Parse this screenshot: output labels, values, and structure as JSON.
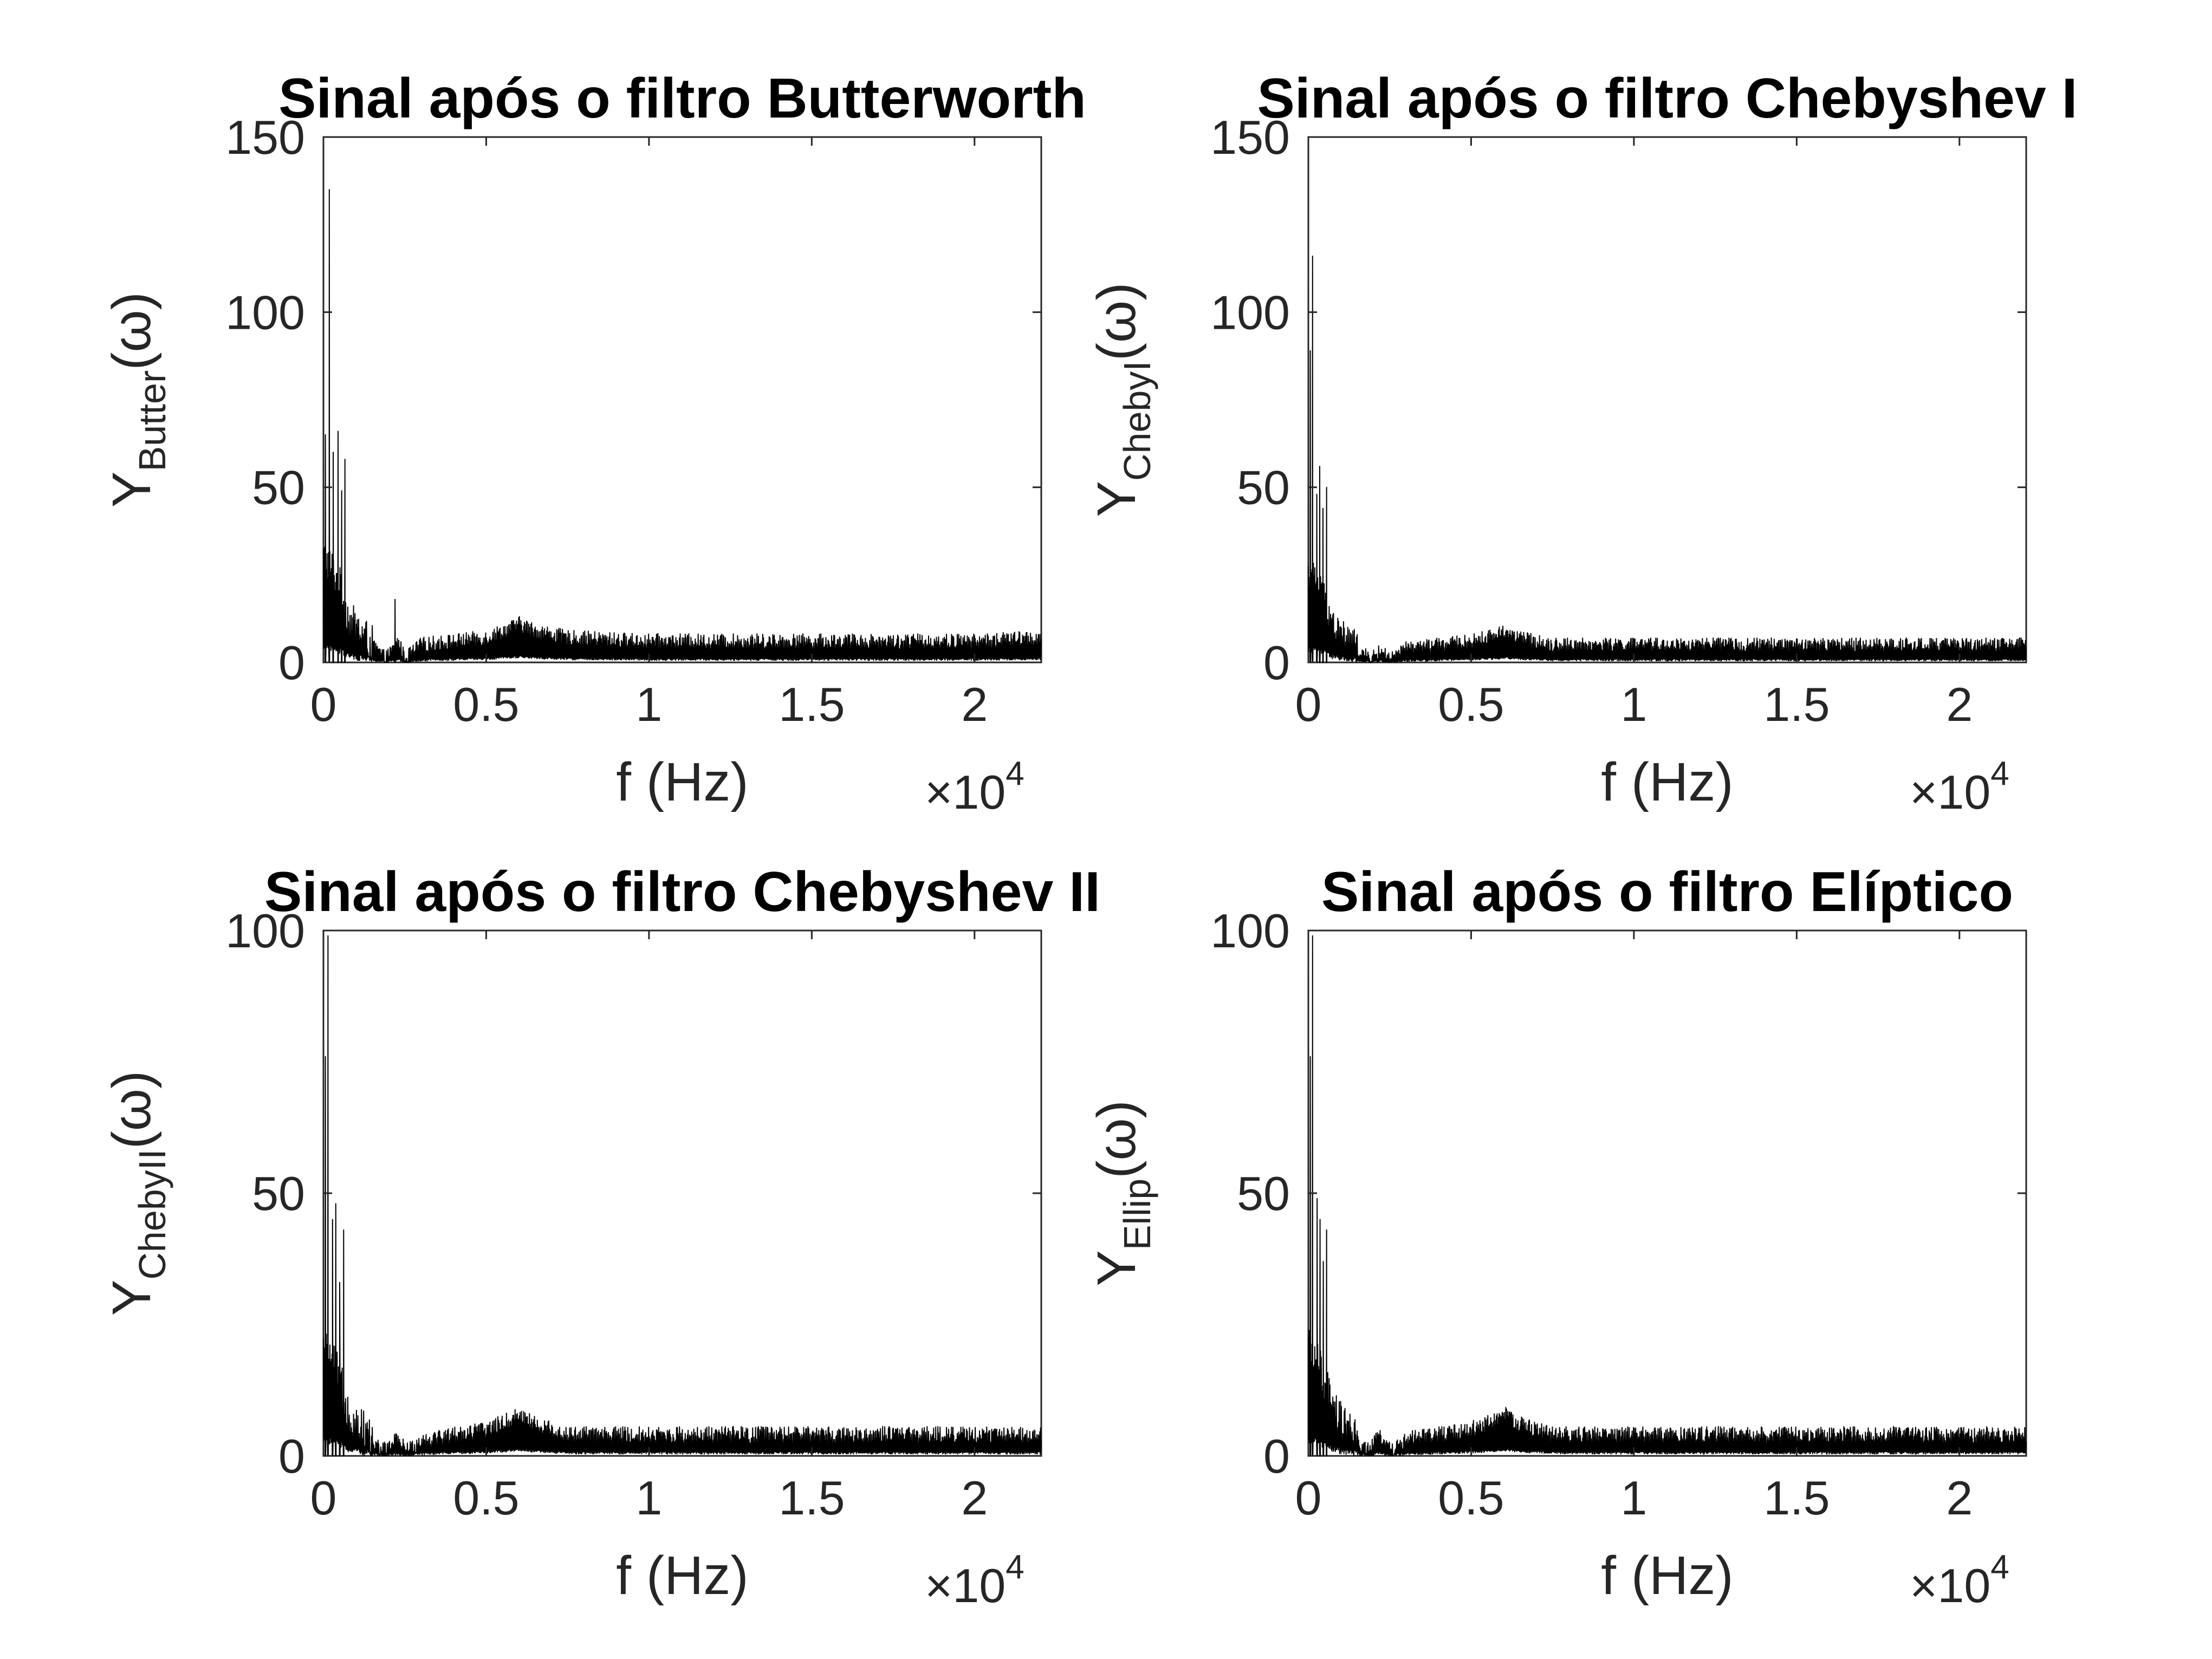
{
  "figure": {
    "axis_color": "#262626",
    "line_color": "#000000",
    "background": "#ffffff"
  },
  "chart_data": [
    {
      "type": "line",
      "title": "Sinal após o filtro Butterworth",
      "xlabel": "f (Hz)",
      "ylabel": {
        "base": "Y",
        "subscript": "Butter",
        "suffix": "(ω)"
      },
      "x_multiplier": {
        "base": "×10",
        "exponent": "4"
      },
      "xlim": [
        0,
        22050
      ],
      "ylim": [
        0,
        150
      ],
      "xticks": [
        0,
        5000,
        10000,
        15000,
        20000
      ],
      "xtick_labels": [
        "0",
        "0.5",
        "1",
        "1.5",
        "2"
      ],
      "yticks": [
        0,
        50,
        100,
        150
      ],
      "ytick_labels": [
        "0",
        "50",
        "100",
        "150"
      ],
      "grid": false,
      "series": [
        {
          "peaks": [
            [
              60,
              65
            ],
            [
              180,
              135
            ],
            [
              300,
              60
            ],
            [
              450,
              66
            ],
            [
              560,
              49
            ],
            [
              660,
              58
            ],
            [
              2200,
              18
            ]
          ],
          "envelope": [
            [
              0,
              30
            ],
            [
              200,
              28
            ],
            [
              500,
              22
            ],
            [
              800,
              12
            ],
            [
              1200,
              8
            ],
            [
              1600,
              4
            ],
            [
              1900,
              1
            ],
            [
              2100,
              3
            ],
            [
              2300,
              6
            ],
            [
              2500,
              1
            ],
            [
              3000,
              5
            ],
            [
              4000,
              6
            ],
            [
              5000,
              7
            ],
            [
              5800,
              10
            ],
            [
              6000,
              11
            ],
            [
              6500,
              9
            ],
            [
              7500,
              7
            ],
            [
              10000,
              6
            ],
            [
              15000,
              6
            ],
            [
              20000,
              6
            ],
            [
              22050,
              7
            ]
          ],
          "noise": 2.2
        }
      ]
    },
    {
      "type": "line",
      "title": "Sinal após o filtro Chebyshev I",
      "xlabel": "f (Hz)",
      "ylabel": {
        "base": "Y",
        "subscript": "ChebyI",
        "suffix": "(ω)"
      },
      "x_multiplier": {
        "base": "×10",
        "exponent": "4"
      },
      "xlim": [
        0,
        22050
      ],
      "ylim": [
        0,
        150
      ],
      "xticks": [
        0,
        5000,
        10000,
        15000,
        20000
      ],
      "xtick_labels": [
        "0",
        "0.5",
        "1",
        "1.5",
        "2"
      ],
      "yticks": [
        0,
        50,
        100,
        150
      ],
      "ytick_labels": [
        "0",
        "50",
        "100",
        "150"
      ],
      "grid": false,
      "series": [
        {
          "peaks": [
            [
              60,
              89
            ],
            [
              130,
              116
            ],
            [
              260,
              48
            ],
            [
              350,
              56
            ],
            [
              450,
              44
            ],
            [
              560,
              50
            ]
          ],
          "envelope": [
            [
              0,
              25
            ],
            [
              200,
              24
            ],
            [
              500,
              18
            ],
            [
              800,
              10
            ],
            [
              1200,
              6
            ],
            [
              1600,
              3
            ],
            [
              1900,
              1
            ],
            [
              2200,
              3
            ],
            [
              2600,
              1
            ],
            [
              3000,
              4
            ],
            [
              4000,
              5
            ],
            [
              5000,
              6
            ],
            [
              5800,
              8
            ],
            [
              6000,
              9
            ],
            [
              6500,
              7
            ],
            [
              7500,
              5
            ],
            [
              10000,
              5
            ],
            [
              15000,
              5
            ],
            [
              20000,
              5
            ],
            [
              22050,
              5
            ]
          ],
          "noise": 2.0
        }
      ]
    },
    {
      "type": "line",
      "title": "Sinal após o filtro Chebyshev II",
      "xlabel": "f (Hz)",
      "ylabel": {
        "base": "Y",
        "subscript": "ChebyII",
        "suffix": "(ω)"
      },
      "x_multiplier": {
        "base": "×10",
        "exponent": "4"
      },
      "xlim": [
        0,
        22050
      ],
      "ylim": [
        0,
        100
      ],
      "xticks": [
        0,
        5000,
        10000,
        15000,
        20000
      ],
      "xtick_labels": [
        "0",
        "0.5",
        "1",
        "1.5",
        "2"
      ],
      "yticks": [
        0,
        50,
        100
      ],
      "ytick_labels": [
        "0",
        "50",
        "100"
      ],
      "grid": false,
      "series": [
        {
          "peaks": [
            [
              60,
              76
            ],
            [
              140,
              99
            ],
            [
              280,
              45
            ],
            [
              380,
              48
            ],
            [
              500,
              33
            ],
            [
              620,
              43
            ]
          ],
          "envelope": [
            [
              0,
              20
            ],
            [
              200,
              19
            ],
            [
              500,
              15
            ],
            [
              800,
              8
            ],
            [
              1200,
              5
            ],
            [
              1600,
              2
            ],
            [
              1900,
              1
            ],
            [
              2200,
              3
            ],
            [
              2600,
              1
            ],
            [
              3000,
              3
            ],
            [
              4000,
              4
            ],
            [
              5000,
              5
            ],
            [
              5800,
              7
            ],
            [
              6000,
              8
            ],
            [
              6500,
              6
            ],
            [
              7500,
              4
            ],
            [
              10000,
              4
            ],
            [
              15000,
              4
            ],
            [
              20000,
              4
            ],
            [
              22050,
              4
            ]
          ],
          "noise": 1.6
        }
      ]
    },
    {
      "type": "line",
      "title": "Sinal após o filtro Elíptico",
      "xlabel": "f (Hz)",
      "ylabel": {
        "base": "Y",
        "subscript": "Ellip",
        "suffix": "(ω)"
      },
      "x_multiplier": {
        "base": "×10",
        "exponent": "4"
      },
      "xlim": [
        0,
        22050
      ],
      "ylim": [
        0,
        100
      ],
      "xticks": [
        0,
        5000,
        10000,
        15000,
        20000
      ],
      "xtick_labels": [
        "0",
        "0.5",
        "1",
        "1.5",
        "2"
      ],
      "yticks": [
        0,
        50,
        100
      ],
      "ytick_labels": [
        "0",
        "50",
        "100"
      ],
      "grid": false,
      "series": [
        {
          "peaks": [
            [
              60,
              76
            ],
            [
              130,
              99
            ],
            [
              270,
              49
            ],
            [
              360,
              45
            ],
            [
              460,
              37
            ],
            [
              560,
              43
            ]
          ],
          "envelope": [
            [
              0,
              20
            ],
            [
              200,
              19
            ],
            [
              500,
              14
            ],
            [
              800,
              8
            ],
            [
              1200,
              5
            ],
            [
              1600,
              2
            ],
            [
              1900,
              1
            ],
            [
              2200,
              4
            ],
            [
              2600,
              1
            ],
            [
              3000,
              3
            ],
            [
              4000,
              4
            ],
            [
              5000,
              5
            ],
            [
              5800,
              7
            ],
            [
              6000,
              8
            ],
            [
              6500,
              6
            ],
            [
              7500,
              4
            ],
            [
              10000,
              4
            ],
            [
              15000,
              4
            ],
            [
              20000,
              4
            ],
            [
              22050,
              4
            ]
          ],
          "noise": 1.6
        }
      ]
    }
  ]
}
